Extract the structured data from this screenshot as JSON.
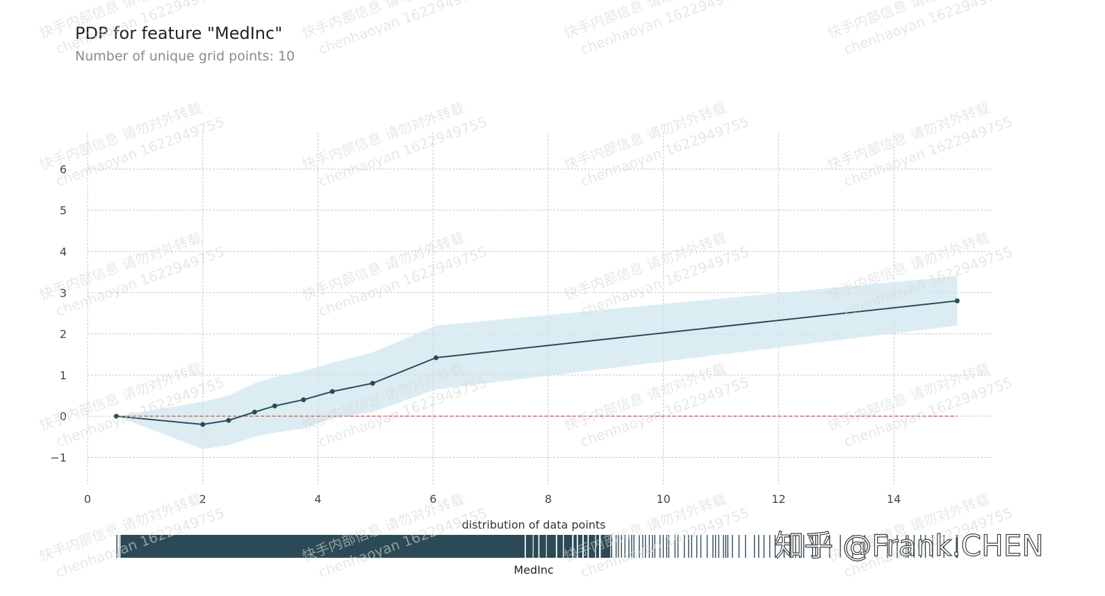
{
  "chart_data": {
    "type": "line",
    "title": "PDP for feature \"MedInc\"",
    "subtitle": "Number of unique grid points: 10",
    "x": [
      0.5,
      2.0,
      2.45,
      2.9,
      3.25,
      3.75,
      4.25,
      4.95,
      6.05,
      15.1
    ],
    "y": [
      0.0,
      -0.2,
      -0.1,
      0.1,
      0.25,
      0.4,
      0.6,
      0.8,
      1.42,
      2.8
    ],
    "band_upper": [
      0.0,
      0.35,
      0.5,
      0.8,
      0.95,
      1.1,
      1.3,
      1.55,
      2.2,
      3.4
    ],
    "band_lower": [
      0.0,
      -0.8,
      -0.7,
      -0.5,
      -0.4,
      -0.3,
      -0.05,
      0.1,
      0.65,
      2.2
    ],
    "reference_line": 0,
    "xlim": [
      0,
      15.7
    ],
    "ylim": [
      -1.7,
      6.9
    ],
    "xticks": [
      0,
      2,
      4,
      6,
      8,
      10,
      12,
      14
    ],
    "yticks": [
      -1,
      0,
      1,
      2,
      3,
      4,
      5,
      6
    ],
    "ytick_labels": [
      "−1",
      "0",
      "1",
      "2",
      "3",
      "4",
      "5",
      "6"
    ],
    "grid": true,
    "distribution_label": "distribution of data points",
    "xlabel": "MedInc",
    "distribution_dense_range": [
      0.5,
      9.1
    ],
    "distribution_sparse_range": [
      9.1,
      15.1
    ],
    "colors": {
      "line": "#2c4a56",
      "band": "#cce6ee",
      "reference": "#d9634a",
      "grid": "#c8c8c8",
      "rug": "#2c4a56"
    }
  },
  "watermark": {
    "line1": "快手内部信息 请勿对外转载",
    "line2": "chenhaoyan 1622949755",
    "zhihu": "知乎 @Frank.CHEN"
  }
}
